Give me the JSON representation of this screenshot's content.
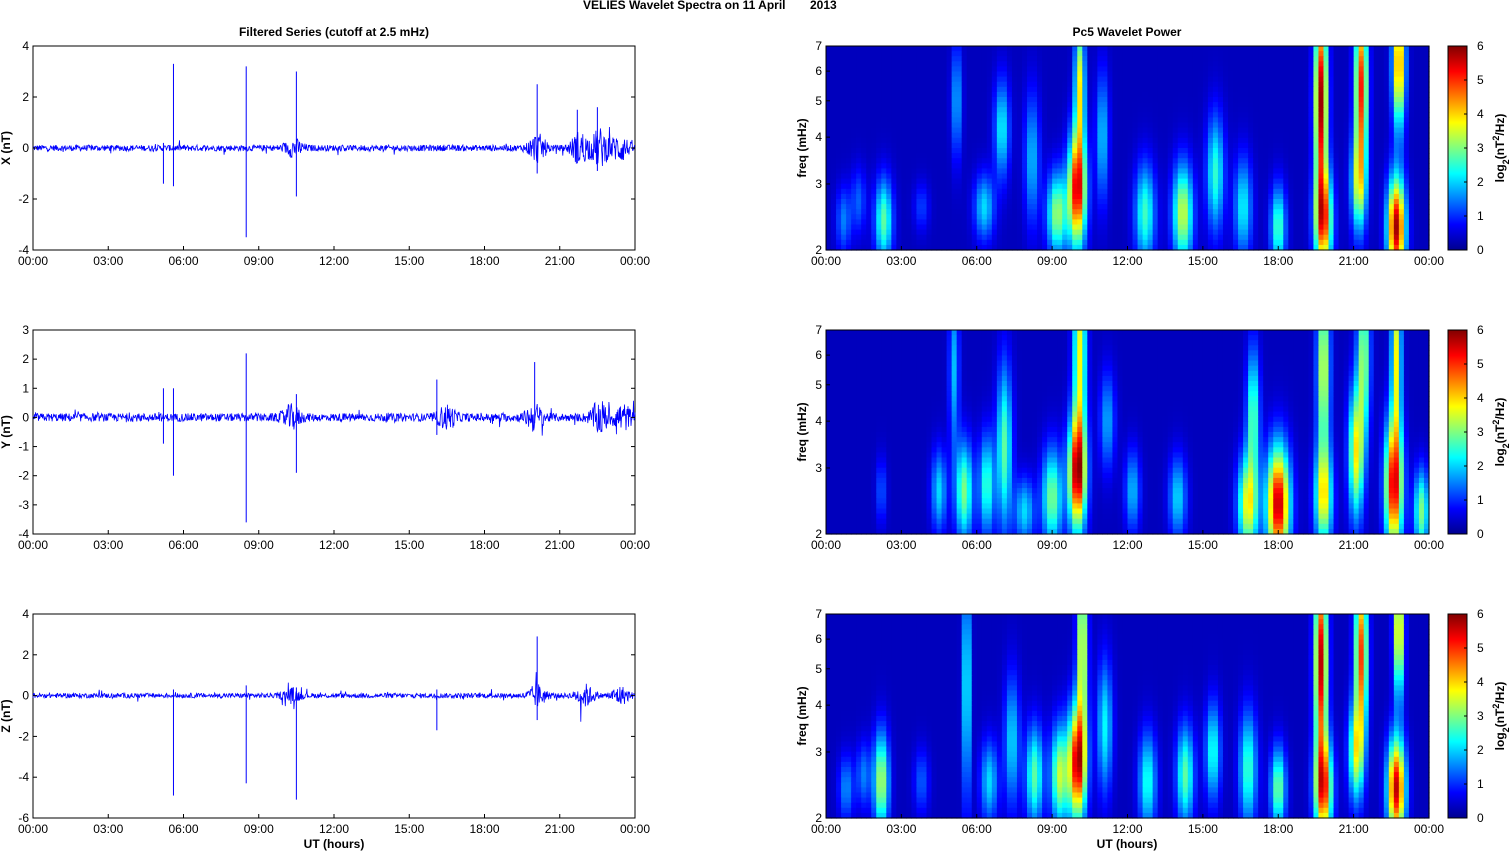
{
  "figure": {
    "title_left": "VELIES Wavelet Spectra on 11 April",
    "title_year": "2013",
    "left_column_title": "Filtered Series (cutoff at 2.5 mHz)",
    "right_column_title": "Pc5 Wavelet Power",
    "xlabel": "UT (hours)",
    "freq_label": "freq (mHz)",
    "colorbar_label_main": "log",
    "colorbar_label_sub": "2",
    "colorbar_label_rest1": "(nT",
    "colorbar_label_sup": "2",
    "colorbar_label_rest2": "/Hz)"
  },
  "chart_data": [
    {
      "type": "line",
      "component": "X",
      "ylabel": "X (nT)",
      "x_ticks": [
        "00:00",
        "03:00",
        "06:00",
        "09:00",
        "12:00",
        "15:00",
        "18:00",
        "21:00",
        "00:00"
      ],
      "xlim": [
        0,
        24
      ],
      "ylim": [
        -4,
        4
      ],
      "y_ticks": [
        -4,
        -2,
        0,
        2,
        4
      ],
      "noise_amplitude": 0.12,
      "bursts": [
        {
          "t": 10.4,
          "a": 0.3
        },
        {
          "t": 20.1,
          "a": 0.5
        },
        {
          "t": 21.8,
          "a": 0.6
        },
        {
          "t": 22.6,
          "a": 0.7
        },
        {
          "t": 23.4,
          "a": 0.5
        }
      ],
      "spikes": [
        {
          "t": 5.6,
          "min": -1.5,
          "max": 3.3
        },
        {
          "t": 8.5,
          "min": -3.5,
          "max": 3.2
        },
        {
          "t": 10.5,
          "min": -1.9,
          "max": 3.0
        },
        {
          "t": 5.2,
          "min": -1.4,
          "max": 0.2
        },
        {
          "t": 20.1,
          "min": -1.0,
          "max": 2.5
        },
        {
          "t": 21.7,
          "min": -0.6,
          "max": 1.5
        },
        {
          "t": 22.5,
          "min": -0.9,
          "max": 1.6
        }
      ]
    },
    {
      "type": "line",
      "component": "Y",
      "ylabel": "Y (nT)",
      "x_ticks": [
        "00:00",
        "03:00",
        "06:00",
        "09:00",
        "12:00",
        "15:00",
        "18:00",
        "21:00",
        "00:00"
      ],
      "xlim": [
        0,
        24
      ],
      "ylim": [
        -4,
        3
      ],
      "y_ticks": [
        -4,
        -3,
        -2,
        -1,
        0,
        1,
        2,
        3
      ],
      "noise_amplitude": 0.14,
      "bursts": [
        {
          "t": 10.3,
          "a": 0.35
        },
        {
          "t": 16.5,
          "a": 0.35
        },
        {
          "t": 20.0,
          "a": 0.4
        },
        {
          "t": 22.6,
          "a": 0.5
        },
        {
          "t": 23.5,
          "a": 0.4
        }
      ],
      "spikes": [
        {
          "t": 5.6,
          "min": -2.0,
          "max": 1.0
        },
        {
          "t": 8.5,
          "min": -3.6,
          "max": 2.2
        },
        {
          "t": 10.5,
          "min": -1.9,
          "max": 0.8
        },
        {
          "t": 5.2,
          "min": -0.9,
          "max": 1.0
        },
        {
          "t": 16.1,
          "min": -0.6,
          "max": 1.3
        },
        {
          "t": 20.0,
          "min": -0.2,
          "max": 1.9
        }
      ]
    },
    {
      "type": "line",
      "component": "Z",
      "ylabel": "Z (nT)",
      "x_ticks": [
        "00:00",
        "03:00",
        "06:00",
        "09:00",
        "12:00",
        "15:00",
        "18:00",
        "21:00",
        "00:00"
      ],
      "xlim": [
        0,
        24
      ],
      "ylim": [
        -6,
        4
      ],
      "y_ticks": [
        -6,
        -4,
        -2,
        0,
        2,
        4
      ],
      "noise_amplitude": 0.12,
      "bursts": [
        {
          "t": 10.3,
          "a": 0.3
        },
        {
          "t": 20.1,
          "a": 0.5
        },
        {
          "t": 22.0,
          "a": 0.5
        },
        {
          "t": 23.4,
          "a": 0.4
        }
      ],
      "spikes": [
        {
          "t": 5.6,
          "min": -4.9,
          "max": 0.3
        },
        {
          "t": 8.5,
          "min": -4.3,
          "max": 0.5
        },
        {
          "t": 10.5,
          "min": -5.1,
          "max": 0.4
        },
        {
          "t": 16.1,
          "min": -1.7,
          "max": 0.3
        },
        {
          "t": 20.1,
          "min": -1.2,
          "max": 2.9
        }
      ]
    },
    {
      "type": "heatmap",
      "component": "X",
      "ylabel": "freq (mHz)",
      "x_ticks": [
        "00:00",
        "03:00",
        "06:00",
        "09:00",
        "12:00",
        "15:00",
        "18:00",
        "21:00",
        "00:00"
      ],
      "xlim": [
        0,
        24
      ],
      "ylim": [
        2,
        7
      ],
      "y_ticks": [
        2,
        3,
        4,
        5,
        6,
        7
      ],
      "y_scale": "log",
      "colorbar_range": [
        0,
        6
      ],
      "colorbar_ticks": [
        0,
        1,
        2,
        3,
        4,
        5,
        6
      ],
      "blobs": [
        {
          "t": 2.3,
          "f": 2.4,
          "w": 0.35,
          "h": 0.25,
          "v": 2.6
        },
        {
          "t": 0.7,
          "f": 2.4,
          "w": 0.3,
          "h": 0.2,
          "v": 1.2
        },
        {
          "t": 1.3,
          "f": 2.7,
          "w": 0.3,
          "h": 0.2,
          "v": 1.0
        },
        {
          "t": 3.8,
          "f": 2.6,
          "w": 0.3,
          "h": 0.15,
          "v": 0.8
        },
        {
          "t": 5.2,
          "f": 5.0,
          "w": 0.2,
          "h": 0.35,
          "v": 1.6
        },
        {
          "t": 7.0,
          "f": 4.2,
          "w": 0.3,
          "h": 0.3,
          "v": 2.0
        },
        {
          "t": 6.3,
          "f": 2.6,
          "w": 0.4,
          "h": 0.2,
          "v": 1.8
        },
        {
          "t": 8.2,
          "f": 3.5,
          "w": 0.3,
          "h": 0.4,
          "v": 1.6
        },
        {
          "t": 9.2,
          "f": 2.5,
          "w": 0.4,
          "h": 0.25,
          "v": 3.0
        },
        {
          "t": 10.0,
          "f": 2.9,
          "w": 0.35,
          "h": 0.35,
          "v": 5.5
        },
        {
          "t": 10.1,
          "f": 5.5,
          "w": 0.2,
          "h": 0.4,
          "v": 3.5
        },
        {
          "t": 11.0,
          "f": 4.0,
          "w": 0.25,
          "h": 0.4,
          "v": 1.7
        },
        {
          "t": 12.7,
          "f": 2.5,
          "w": 0.4,
          "h": 0.3,
          "v": 2.4
        },
        {
          "t": 14.2,
          "f": 2.5,
          "w": 0.4,
          "h": 0.3,
          "v": 3.3
        },
        {
          "t": 15.5,
          "f": 3.2,
          "w": 0.35,
          "h": 0.35,
          "v": 2.3
        },
        {
          "t": 16.6,
          "f": 2.6,
          "w": 0.35,
          "h": 0.3,
          "v": 2.0
        },
        {
          "t": 18.0,
          "f": 2.3,
          "w": 0.3,
          "h": 0.25,
          "v": 2.5
        },
        {
          "t": 19.8,
          "f": 2.4,
          "w": 0.35,
          "h": 0.3,
          "v": 4.6
        },
        {
          "t": 19.7,
          "f": 5.0,
          "w": 0.25,
          "h": 0.6,
          "v": 5.8
        },
        {
          "t": 21.3,
          "f": 5.5,
          "w": 0.25,
          "h": 0.5,
          "v": 5.0
        },
        {
          "t": 22.7,
          "f": 2.3,
          "w": 0.35,
          "h": 0.3,
          "v": 5.8
        },
        {
          "t": 22.8,
          "f": 6.3,
          "w": 0.25,
          "h": 0.4,
          "v": 4.5
        },
        {
          "t": 21.2,
          "f": 3.0,
          "w": 0.3,
          "h": 0.3,
          "v": 3.0
        }
      ]
    },
    {
      "type": "heatmap",
      "component": "Y",
      "ylabel": "freq (mHz)",
      "x_ticks": [
        "00:00",
        "03:00",
        "06:00",
        "09:00",
        "12:00",
        "15:00",
        "18:00",
        "21:00",
        "00:00"
      ],
      "xlim": [
        0,
        24
      ],
      "ylim": [
        2,
        7
      ],
      "y_ticks": [
        2,
        3,
        4,
        5,
        6,
        7
      ],
      "y_scale": "log",
      "colorbar_range": [
        0,
        6
      ],
      "colorbar_ticks": [
        0,
        1,
        2,
        3,
        4,
        5,
        6
      ],
      "blobs": [
        {
          "t": 2.2,
          "f": 2.6,
          "w": 0.2,
          "h": 0.2,
          "v": 1.0
        },
        {
          "t": 4.5,
          "f": 2.6,
          "w": 0.3,
          "h": 0.25,
          "v": 1.8
        },
        {
          "t": 5.5,
          "f": 2.6,
          "w": 0.35,
          "h": 0.3,
          "v": 2.8
        },
        {
          "t": 6.4,
          "f": 2.7,
          "w": 0.3,
          "h": 0.3,
          "v": 2.4
        },
        {
          "t": 7.1,
          "f": 3.4,
          "w": 0.3,
          "h": 0.5,
          "v": 2.6
        },
        {
          "t": 5.1,
          "f": 5.5,
          "w": 0.2,
          "h": 0.5,
          "v": 1.6
        },
        {
          "t": 7.9,
          "f": 2.3,
          "w": 0.4,
          "h": 0.2,
          "v": 1.8
        },
        {
          "t": 9.0,
          "f": 2.5,
          "w": 0.4,
          "h": 0.3,
          "v": 2.8
        },
        {
          "t": 10.0,
          "f": 2.9,
          "w": 0.35,
          "h": 0.35,
          "v": 5.6
        },
        {
          "t": 10.1,
          "f": 6.2,
          "w": 0.25,
          "h": 0.6,
          "v": 3.5
        },
        {
          "t": 11.2,
          "f": 4.0,
          "w": 0.3,
          "h": 0.3,
          "v": 1.5
        },
        {
          "t": 12.2,
          "f": 2.6,
          "w": 0.3,
          "h": 0.25,
          "v": 1.6
        },
        {
          "t": 14.0,
          "f": 2.5,
          "w": 0.35,
          "h": 0.25,
          "v": 1.8
        },
        {
          "t": 16.8,
          "f": 2.4,
          "w": 0.4,
          "h": 0.3,
          "v": 3.6
        },
        {
          "t": 17.0,
          "f": 4.2,
          "w": 0.25,
          "h": 0.4,
          "v": 2.6
        },
        {
          "t": 18.0,
          "f": 2.4,
          "w": 0.45,
          "h": 0.35,
          "v": 5.7
        },
        {
          "t": 19.8,
          "f": 2.5,
          "w": 0.35,
          "h": 0.3,
          "v": 3.4
        },
        {
          "t": 19.8,
          "f": 5.5,
          "w": 0.25,
          "h": 0.6,
          "v": 3.5
        },
        {
          "t": 21.1,
          "f": 3.3,
          "w": 0.3,
          "h": 0.4,
          "v": 3.6
        },
        {
          "t": 21.4,
          "f": 6.0,
          "w": 0.25,
          "h": 0.5,
          "v": 3.0
        },
        {
          "t": 22.6,
          "f": 2.7,
          "w": 0.35,
          "h": 0.4,
          "v": 5.5
        },
        {
          "t": 22.7,
          "f": 6.0,
          "w": 0.2,
          "h": 0.5,
          "v": 3.5
        },
        {
          "t": 23.7,
          "f": 2.3,
          "w": 0.3,
          "h": 0.25,
          "v": 2.8
        }
      ]
    },
    {
      "type": "heatmap",
      "component": "Z",
      "ylabel": "freq (mHz)",
      "x_ticks": [
        "00:00",
        "03:00",
        "06:00",
        "09:00",
        "12:00",
        "15:00",
        "18:00",
        "21:00",
        "00:00"
      ],
      "xlim": [
        0,
        24
      ],
      "ylim": [
        2,
        7
      ],
      "y_ticks": [
        2,
        3,
        4,
        5,
        6,
        7
      ],
      "y_scale": "log",
      "colorbar_range": [
        0,
        6
      ],
      "colorbar_ticks": [
        0,
        1,
        2,
        3,
        4,
        5,
        6
      ],
      "blobs": [
        {
          "t": 2.2,
          "f": 2.5,
          "w": 0.3,
          "h": 0.3,
          "v": 3.2
        },
        {
          "t": 0.8,
          "f": 2.4,
          "w": 0.3,
          "h": 0.2,
          "v": 1.3
        },
        {
          "t": 1.5,
          "f": 2.6,
          "w": 0.3,
          "h": 0.2,
          "v": 1.2
        },
        {
          "t": 3.8,
          "f": 2.5,
          "w": 0.3,
          "h": 0.2,
          "v": 1.0
        },
        {
          "t": 5.6,
          "f": 4.5,
          "w": 0.15,
          "h": 0.7,
          "v": 2.6
        },
        {
          "t": 6.5,
          "f": 2.5,
          "w": 0.35,
          "h": 0.25,
          "v": 1.8
        },
        {
          "t": 7.4,
          "f": 3.2,
          "w": 0.3,
          "h": 0.4,
          "v": 1.8
        },
        {
          "t": 8.3,
          "f": 2.6,
          "w": 0.35,
          "h": 0.3,
          "v": 2.6
        },
        {
          "t": 9.3,
          "f": 2.6,
          "w": 0.35,
          "h": 0.3,
          "v": 3.2
        },
        {
          "t": 10.0,
          "f": 2.8,
          "w": 0.35,
          "h": 0.35,
          "v": 5.5
        },
        {
          "t": 10.2,
          "f": 5.8,
          "w": 0.2,
          "h": 0.6,
          "v": 3.8
        },
        {
          "t": 11.1,
          "f": 3.5,
          "w": 0.3,
          "h": 0.4,
          "v": 2.0
        },
        {
          "t": 12.8,
          "f": 2.5,
          "w": 0.35,
          "h": 0.3,
          "v": 2.2
        },
        {
          "t": 14.3,
          "f": 2.6,
          "w": 0.35,
          "h": 0.3,
          "v": 2.6
        },
        {
          "t": 15.4,
          "f": 3.0,
          "w": 0.3,
          "h": 0.3,
          "v": 2.2
        },
        {
          "t": 16.8,
          "f": 2.7,
          "w": 0.35,
          "h": 0.35,
          "v": 2.4
        },
        {
          "t": 18.0,
          "f": 2.4,
          "w": 0.3,
          "h": 0.25,
          "v": 2.8
        },
        {
          "t": 19.8,
          "f": 2.4,
          "w": 0.35,
          "h": 0.3,
          "v": 4.8
        },
        {
          "t": 19.7,
          "f": 5.2,
          "w": 0.25,
          "h": 0.6,
          "v": 5.6
        },
        {
          "t": 21.3,
          "f": 5.5,
          "w": 0.25,
          "h": 0.5,
          "v": 4.8
        },
        {
          "t": 21.1,
          "f": 3.0,
          "w": 0.3,
          "h": 0.3,
          "v": 3.2
        },
        {
          "t": 22.7,
          "f": 2.4,
          "w": 0.35,
          "h": 0.3,
          "v": 5.6
        },
        {
          "t": 22.8,
          "f": 6.3,
          "w": 0.2,
          "h": 0.4,
          "v": 4.2
        }
      ]
    }
  ]
}
